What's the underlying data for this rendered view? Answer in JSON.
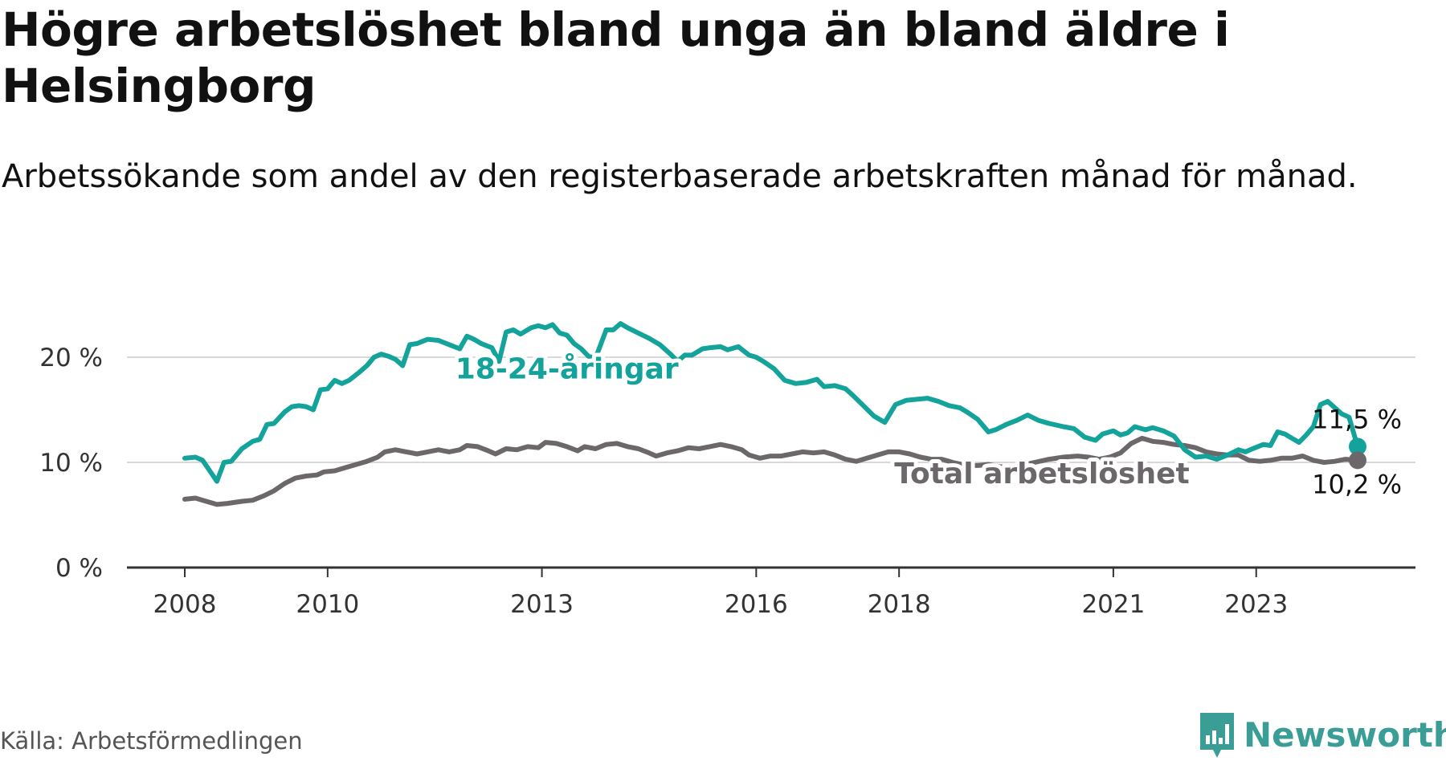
{
  "header": {
    "title": "Högre arbetslöshet bland unga än bland äldre i Helsingborg",
    "subtitle": "Arbetssökande som andel av den registerbaserade arbetskraften månad för månad."
  },
  "footer": {
    "source": "Källa: Arbetsförmedlingen",
    "brand": "Newsworthy"
  },
  "colors": {
    "youth": "#13a39a",
    "total": "#6b676b",
    "grid": "#d9d9d9",
    "axis": "#333333",
    "brand": "#3a9e96"
  },
  "chart_data": {
    "type": "line",
    "title": "Högre arbetslöshet bland unga än bland äldre i Helsingborg",
    "xlabel": "",
    "ylabel": "",
    "xlim": [
      2008.0,
      2024.6
    ],
    "ylim": [
      0,
      24
    ],
    "y_ticks": [
      0,
      10,
      20
    ],
    "y_tick_labels": [
      "0 %",
      "10 %",
      "20 %"
    ],
    "x_ticks": [
      2008,
      2010,
      2013,
      2016,
      2018,
      2021,
      2023
    ],
    "x_tick_labels": [
      "2008",
      "2010",
      "2013",
      "2016",
      "2018",
      "2021",
      "2023"
    ],
    "series": [
      {
        "name": "18-24-åringar",
        "key": "youth",
        "end_label": "11,5 %",
        "points": [
          [
            2008.0,
            10.4
          ],
          [
            2008.15,
            10.5
          ],
          [
            2008.25,
            10.2
          ],
          [
            2008.35,
            9.2
          ],
          [
            2008.45,
            8.2
          ],
          [
            2008.55,
            10.0
          ],
          [
            2008.65,
            10.1
          ],
          [
            2008.8,
            11.3
          ],
          [
            2008.95,
            12.0
          ],
          [
            2009.05,
            12.2
          ],
          [
            2009.15,
            13.6
          ],
          [
            2009.25,
            13.7
          ],
          [
            2009.4,
            14.8
          ],
          [
            2009.5,
            15.3
          ],
          [
            2009.6,
            15.4
          ],
          [
            2009.7,
            15.3
          ],
          [
            2009.8,
            15.0
          ],
          [
            2009.9,
            16.9
          ],
          [
            2010.0,
            17.0
          ],
          [
            2010.1,
            17.8
          ],
          [
            2010.2,
            17.5
          ],
          [
            2010.3,
            17.8
          ],
          [
            2010.45,
            18.6
          ],
          [
            2010.55,
            19.2
          ],
          [
            2010.65,
            20.0
          ],
          [
            2010.75,
            20.3
          ],
          [
            2010.85,
            20.1
          ],
          [
            2010.95,
            19.8
          ],
          [
            2011.05,
            19.2
          ],
          [
            2011.15,
            21.2
          ],
          [
            2011.25,
            21.3
          ],
          [
            2011.4,
            21.7
          ],
          [
            2011.55,
            21.6
          ],
          [
            2011.7,
            21.2
          ],
          [
            2011.85,
            20.8
          ],
          [
            2011.95,
            22.0
          ],
          [
            2012.05,
            21.7
          ],
          [
            2012.15,
            21.3
          ],
          [
            2012.3,
            20.9
          ],
          [
            2012.4,
            19.6
          ],
          [
            2012.5,
            22.4
          ],
          [
            2012.6,
            22.6
          ],
          [
            2012.7,
            22.2
          ],
          [
            2012.85,
            22.8
          ],
          [
            2012.95,
            23.0
          ],
          [
            2013.05,
            22.8
          ],
          [
            2013.15,
            23.1
          ],
          [
            2013.25,
            22.3
          ],
          [
            2013.35,
            22.1
          ],
          [
            2013.45,
            21.3
          ],
          [
            2013.55,
            20.8
          ],
          [
            2013.65,
            20.1
          ],
          [
            2013.75,
            19.9
          ],
          [
            2013.9,
            22.6
          ],
          [
            2014.0,
            22.6
          ],
          [
            2014.1,
            23.2
          ],
          [
            2014.2,
            22.8
          ],
          [
            2014.35,
            22.3
          ],
          [
            2014.5,
            21.8
          ],
          [
            2014.65,
            21.2
          ],
          [
            2014.8,
            20.3
          ],
          [
            2014.9,
            19.6
          ],
          [
            2015.0,
            20.2
          ],
          [
            2015.1,
            20.2
          ],
          [
            2015.25,
            20.8
          ],
          [
            2015.35,
            20.9
          ],
          [
            2015.5,
            21.0
          ],
          [
            2015.6,
            20.7
          ],
          [
            2015.75,
            21.0
          ],
          [
            2015.9,
            20.2
          ],
          [
            2016.0,
            20.0
          ],
          [
            2016.1,
            19.6
          ],
          [
            2016.25,
            18.9
          ],
          [
            2016.4,
            17.8
          ],
          [
            2016.55,
            17.5
          ],
          [
            2016.7,
            17.6
          ],
          [
            2016.85,
            17.9
          ],
          [
            2016.95,
            17.2
          ],
          [
            2017.1,
            17.3
          ],
          [
            2017.25,
            17.0
          ],
          [
            2017.35,
            16.4
          ],
          [
            2017.5,
            15.4
          ],
          [
            2017.65,
            14.4
          ],
          [
            2017.8,
            13.8
          ],
          [
            2017.95,
            15.5
          ],
          [
            2018.1,
            15.9
          ],
          [
            2018.25,
            16.0
          ],
          [
            2018.4,
            16.1
          ],
          [
            2018.55,
            15.8
          ],
          [
            2018.7,
            15.4
          ],
          [
            2018.85,
            15.2
          ],
          [
            2018.95,
            14.8
          ],
          [
            2019.1,
            14.1
          ],
          [
            2019.25,
            12.9
          ],
          [
            2019.35,
            13.1
          ],
          [
            2019.5,
            13.6
          ],
          [
            2019.65,
            14.0
          ],
          [
            2019.8,
            14.5
          ],
          [
            2019.95,
            14.0
          ],
          [
            2020.1,
            13.7
          ],
          [
            2020.3,
            13.4
          ],
          [
            2020.45,
            13.2
          ],
          [
            2020.6,
            12.4
          ],
          [
            2020.75,
            12.1
          ],
          [
            2020.85,
            12.7
          ],
          [
            2021.0,
            13.0
          ],
          [
            2021.1,
            12.6
          ],
          [
            2021.2,
            12.8
          ],
          [
            2021.3,
            13.4
          ],
          [
            2021.45,
            13.1
          ],
          [
            2021.55,
            13.3
          ],
          [
            2021.7,
            13.0
          ],
          [
            2021.85,
            12.5
          ],
          [
            2022.0,
            11.2
          ],
          [
            2022.15,
            10.5
          ],
          [
            2022.3,
            10.6
          ],
          [
            2022.45,
            10.3
          ],
          [
            2022.6,
            10.7
          ],
          [
            2022.75,
            11.2
          ],
          [
            2022.85,
            11.0
          ],
          [
            2022.95,
            11.3
          ],
          [
            2023.1,
            11.7
          ],
          [
            2023.2,
            11.6
          ],
          [
            2023.3,
            12.9
          ],
          [
            2023.4,
            12.7
          ],
          [
            2023.5,
            12.3
          ],
          [
            2023.6,
            11.9
          ],
          [
            2023.7,
            12.6
          ],
          [
            2023.8,
            13.4
          ],
          [
            2023.9,
            15.5
          ],
          [
            2024.0,
            15.8
          ],
          [
            2024.1,
            15.2
          ],
          [
            2024.2,
            14.6
          ],
          [
            2024.3,
            14.3
          ],
          [
            2024.42,
            11.5
          ]
        ]
      },
      {
        "name": "Total arbetslöshet",
        "key": "total",
        "end_label": "10,2 %",
        "points": [
          [
            2008.0,
            6.5
          ],
          [
            2008.15,
            6.6
          ],
          [
            2008.3,
            6.3
          ],
          [
            2008.45,
            6.0
          ],
          [
            2008.6,
            6.1
          ],
          [
            2008.8,
            6.3
          ],
          [
            2008.95,
            6.4
          ],
          [
            2009.1,
            6.8
          ],
          [
            2009.25,
            7.3
          ],
          [
            2009.4,
            8.0
          ],
          [
            2009.55,
            8.5
          ],
          [
            2009.7,
            8.7
          ],
          [
            2009.85,
            8.8
          ],
          [
            2009.95,
            9.1
          ],
          [
            2010.1,
            9.2
          ],
          [
            2010.25,
            9.5
          ],
          [
            2010.4,
            9.8
          ],
          [
            2010.55,
            10.1
          ],
          [
            2010.7,
            10.5
          ],
          [
            2010.8,
            11.0
          ],
          [
            2010.95,
            11.2
          ],
          [
            2011.1,
            11.0
          ],
          [
            2011.25,
            10.8
          ],
          [
            2011.4,
            11.0
          ],
          [
            2011.55,
            11.2
          ],
          [
            2011.7,
            11.0
          ],
          [
            2011.85,
            11.2
          ],
          [
            2011.95,
            11.6
          ],
          [
            2012.1,
            11.5
          ],
          [
            2012.25,
            11.1
          ],
          [
            2012.35,
            10.8
          ],
          [
            2012.5,
            11.3
          ],
          [
            2012.65,
            11.2
          ],
          [
            2012.8,
            11.5
          ],
          [
            2012.95,
            11.4
          ],
          [
            2013.05,
            11.9
          ],
          [
            2013.2,
            11.8
          ],
          [
            2013.35,
            11.5
          ],
          [
            2013.5,
            11.1
          ],
          [
            2013.6,
            11.5
          ],
          [
            2013.75,
            11.3
          ],
          [
            2013.9,
            11.7
          ],
          [
            2014.05,
            11.8
          ],
          [
            2014.2,
            11.5
          ],
          [
            2014.35,
            11.3
          ],
          [
            2014.5,
            10.9
          ],
          [
            2014.6,
            10.6
          ],
          [
            2014.75,
            10.9
          ],
          [
            2014.9,
            11.1
          ],
          [
            2015.05,
            11.4
          ],
          [
            2015.2,
            11.3
          ],
          [
            2015.35,
            11.5
          ],
          [
            2015.5,
            11.7
          ],
          [
            2015.65,
            11.5
          ],
          [
            2015.8,
            11.2
          ],
          [
            2015.9,
            10.7
          ],
          [
            2016.05,
            10.4
          ],
          [
            2016.2,
            10.6
          ],
          [
            2016.35,
            10.6
          ],
          [
            2016.5,
            10.8
          ],
          [
            2016.65,
            11.0
          ],
          [
            2016.8,
            10.9
          ],
          [
            2016.95,
            11.0
          ],
          [
            2017.1,
            10.7
          ],
          [
            2017.25,
            10.3
          ],
          [
            2017.4,
            10.1
          ],
          [
            2017.55,
            10.4
          ],
          [
            2017.7,
            10.7
          ],
          [
            2017.85,
            11.0
          ],
          [
            2018.0,
            11.0
          ],
          [
            2018.15,
            10.8
          ],
          [
            2018.3,
            10.5
          ],
          [
            2018.45,
            10.3
          ],
          [
            2018.6,
            10.3
          ],
          [
            2018.75,
            10.0
          ],
          [
            2018.95,
            9.7
          ],
          [
            2019.1,
            9.7
          ],
          [
            2019.25,
            9.8
          ],
          [
            2019.4,
            9.6
          ],
          [
            2019.55,
            9.5
          ],
          [
            2019.7,
            9.7
          ],
          [
            2019.9,
            10.0
          ],
          [
            2020.1,
            10.3
          ],
          [
            2020.3,
            10.5
          ],
          [
            2020.5,
            10.6
          ],
          [
            2020.65,
            10.5
          ],
          [
            2020.8,
            10.3
          ],
          [
            2020.95,
            10.5
          ],
          [
            2021.1,
            10.9
          ],
          [
            2021.25,
            11.8
          ],
          [
            2021.4,
            12.3
          ],
          [
            2021.55,
            12.0
          ],
          [
            2021.7,
            11.9
          ],
          [
            2021.85,
            11.7
          ],
          [
            2022.0,
            11.6
          ],
          [
            2022.15,
            11.4
          ],
          [
            2022.3,
            11.0
          ],
          [
            2022.45,
            10.8
          ],
          [
            2022.6,
            10.7
          ],
          [
            2022.75,
            10.7
          ],
          [
            2022.9,
            10.2
          ],
          [
            2023.05,
            10.1
          ],
          [
            2023.2,
            10.2
          ],
          [
            2023.35,
            10.4
          ],
          [
            2023.5,
            10.4
          ],
          [
            2023.65,
            10.6
          ],
          [
            2023.8,
            10.2
          ],
          [
            2023.95,
            10.0
          ],
          [
            2024.1,
            10.1
          ],
          [
            2024.25,
            10.3
          ],
          [
            2024.42,
            10.2
          ]
        ]
      }
    ]
  }
}
